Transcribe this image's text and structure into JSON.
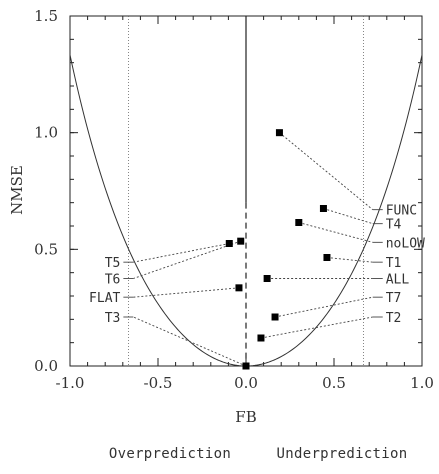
{
  "chart_data": {
    "type": "scatter",
    "title": "",
    "xlabel": "FB",
    "ylabel": "NMSE",
    "xlim": [
      -1.0,
      1.0
    ],
    "ylim": [
      0.0,
      1.5
    ],
    "xticks": [
      "-1.0",
      "-0.5",
      "0.0",
      "0.5",
      "1.0"
    ],
    "yticks": [
      "0.0",
      "0.5",
      "1.0",
      "1.5"
    ],
    "xtick_values": [
      -1.0,
      -0.5,
      0.0,
      0.5,
      1.0
    ],
    "ytick_values": [
      0.0,
      0.5,
      1.0,
      1.5
    ],
    "grid": false,
    "reference_curve": "NMSE = 4 FB^2 / (4 - FB^2)",
    "reference_vlines": [
      -0.667,
      0.0,
      0.667
    ],
    "points": [
      {
        "label": "FUNC",
        "fb": 0.19,
        "nmse": 1.0,
        "label_fb": 0.72,
        "label_nmse": 0.67,
        "side": "right"
      },
      {
        "label": "T4",
        "fb": 0.44,
        "nmse": 0.675,
        "label_fb": 0.72,
        "label_nmse": 0.61,
        "side": "right"
      },
      {
        "label": "noLOW",
        "fb": 0.3,
        "nmse": 0.615,
        "label_fb": 0.72,
        "label_nmse": 0.53,
        "side": "right"
      },
      {
        "label": "T1",
        "fb": 0.46,
        "nmse": 0.465,
        "label_fb": 0.72,
        "label_nmse": 0.445,
        "side": "right"
      },
      {
        "label": "ALL",
        "fb": 0.12,
        "nmse": 0.375,
        "label_fb": 0.72,
        "label_nmse": 0.375,
        "side": "right"
      },
      {
        "label": "T7",
        "fb": 0.165,
        "nmse": 0.21,
        "label_fb": 0.72,
        "label_nmse": 0.295,
        "side": "right"
      },
      {
        "label": "T2",
        "fb": 0.085,
        "nmse": 0.12,
        "label_fb": 0.72,
        "label_nmse": 0.21,
        "side": "right"
      },
      {
        "label": "T5",
        "fb": -0.095,
        "nmse": 0.525,
        "label_fb": -0.64,
        "label_nmse": 0.445,
        "side": "left"
      },
      {
        "label": "T6",
        "fb": -0.03,
        "nmse": 0.535,
        "label_fb": -0.64,
        "label_nmse": 0.375,
        "side": "left"
      },
      {
        "label": "FLAT",
        "fb": -0.04,
        "nmse": 0.335,
        "label_fb": -0.64,
        "label_nmse": 0.295,
        "side": "left"
      },
      {
        "label": "T3",
        "fb": 0.0,
        "nmse": 0.0,
        "label_fb": -0.64,
        "label_nmse": 0.21,
        "side": "left"
      }
    ],
    "footer_left": "Overprediction",
    "footer_right": "Underprediction"
  }
}
